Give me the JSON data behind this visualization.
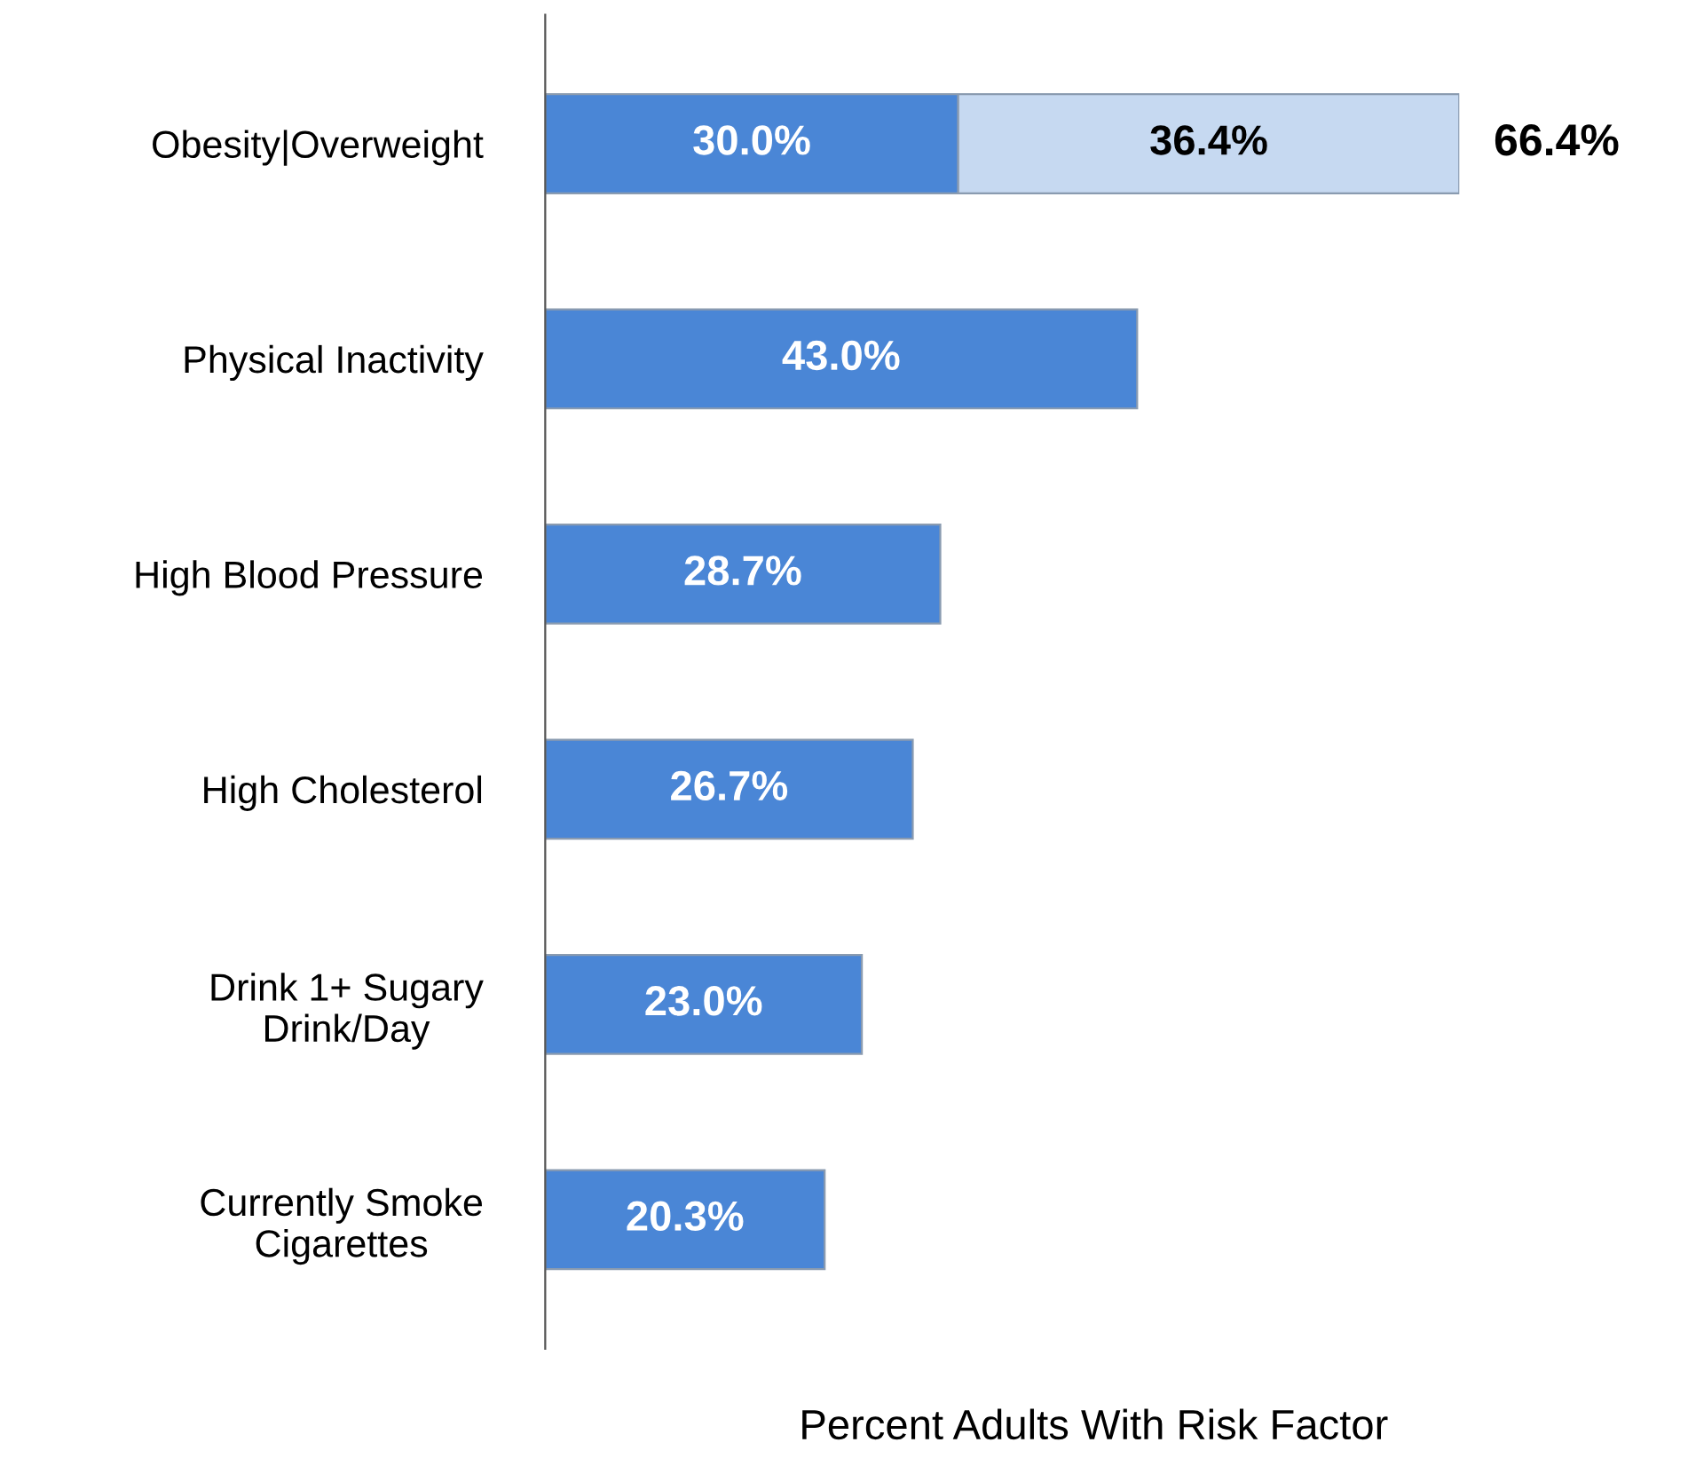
{
  "chart_data": {
    "type": "bar",
    "orientation": "horizontal",
    "stacked": true,
    "categories": [
      "Obesity|Overweight",
      "Physical Inactivity",
      "High Blood Pressure",
      "High Cholesterol",
      "Drink 1+ Sugary\nDrink/Day",
      "Currently Smoke\nCigarettes"
    ],
    "series": [
      {
        "color": "#4a86d6",
        "values": [
          30.0,
          43.0,
          28.7,
          26.7,
          23.0,
          20.3
        ],
        "value_labels": [
          "30.0%",
          "43.0%",
          "28.7%",
          "26.7%",
          "23.0%",
          "20.3%"
        ]
      },
      {
        "color": "#c6d9f1",
        "values": [
          36.4,
          null,
          null,
          null,
          null,
          null
        ],
        "value_labels": [
          "36.4%",
          null,
          null,
          null,
          null,
          null
        ]
      }
    ],
    "totals": [
      "66.4%",
      null,
      null,
      null,
      null,
      null
    ],
    "xlabel": "Percent Adults With Risk Factor",
    "grid": false,
    "legend": false
  }
}
